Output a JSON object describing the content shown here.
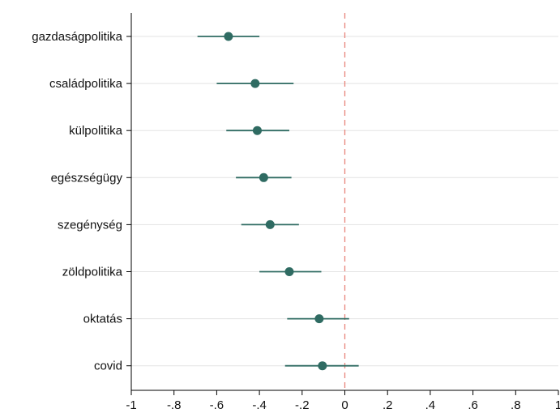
{
  "chart_data": {
    "type": "scatter",
    "subtype": "coefficient-plot-horizontal",
    "title": "",
    "xlabel": "",
    "ylabel": "",
    "xlim": [
      -1,
      1
    ],
    "x_ticks": [
      -1,
      -0.8,
      -0.6,
      -0.4,
      -0.2,
      0,
      0.2,
      0.4,
      0.6,
      0.8,
      1
    ],
    "x_tick_labels": [
      "-1",
      "-.8",
      "-.6",
      "-.4",
      "-.2",
      "0",
      ".2",
      ".4",
      ".6",
      ".8",
      "1"
    ],
    "reference_line": {
      "x": 0,
      "style": "dashed",
      "color": "#e8847a"
    },
    "grid": {
      "horizontal": true,
      "vertical": false
    },
    "marker_color": "#2f6b62",
    "categories": [
      "gazdaságpolitika",
      "családpolitika",
      "külpolitika",
      "egészségügy",
      "szegénység",
      "zöldpolitika",
      "oktatás",
      "covid"
    ],
    "points": [
      {
        "label": "gazdaságpolitika",
        "estimate": -0.545,
        "ci_low": -0.69,
        "ci_high": -0.4
      },
      {
        "label": "családpolitika",
        "estimate": -0.42,
        "ci_low": -0.6,
        "ci_high": -0.24
      },
      {
        "label": "külpolitika",
        "estimate": -0.41,
        "ci_low": -0.555,
        "ci_high": -0.26
      },
      {
        "label": "egészségügy",
        "estimate": -0.38,
        "ci_low": -0.51,
        "ci_high": -0.25
      },
      {
        "label": "szegénység",
        "estimate": -0.35,
        "ci_low": -0.485,
        "ci_high": -0.215
      },
      {
        "label": "zöldpolitika",
        "estimate": -0.26,
        "ci_low": -0.4,
        "ci_high": -0.11
      },
      {
        "label": "oktatás",
        "estimate": -0.12,
        "ci_low": -0.27,
        "ci_high": 0.02
      },
      {
        "label": "covid",
        "estimate": -0.105,
        "ci_low": -0.28,
        "ci_high": 0.065
      }
    ]
  }
}
